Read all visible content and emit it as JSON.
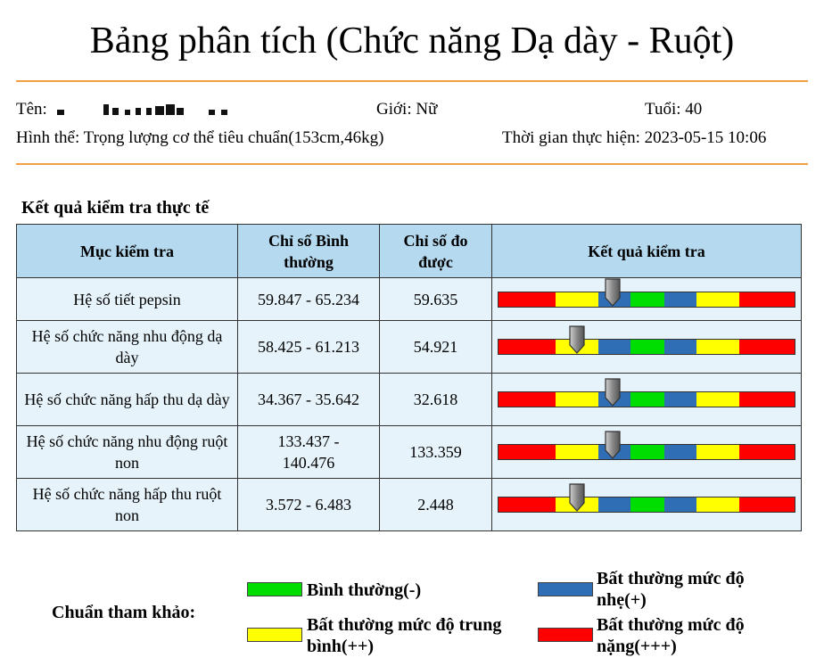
{
  "title": "Bảng phân tích (Chức năng Dạ dày - Ruột)",
  "patient": {
    "name_label": "Tên:",
    "gender": "Giới: Nữ",
    "age": "Tuổi: 40",
    "body": "Hình thể: Trọng lượng cơ thể tiêu chuẩn(153cm,46kg)",
    "time": "Thời gian thực hiện: 2023-05-15 10:06"
  },
  "section_title": "Kết quả kiểm tra thực tế",
  "table": {
    "headers": [
      "Mục kiểm tra",
      "Chỉ số Bình thường",
      "Chỉ số đo được",
      "Kết quả kiểm tra"
    ],
    "rows": [
      {
        "item": "Hệ số tiết pepsin",
        "normal": "59.847 - 65.234",
        "measured": "59.635",
        "pointer_level": 0.385
      },
      {
        "item": "Hệ số chức năng nhu động dạ dày",
        "normal": "58.425 - 61.213",
        "measured": "54.921",
        "pointer_level": 0.265
      },
      {
        "item": "Hệ số chức năng hấp thu dạ dày",
        "normal": "34.367 - 35.642",
        "measured": "32.618",
        "pointer_level": 0.385
      },
      {
        "item": "Hệ số chức năng nhu động ruột non",
        "normal": "133.437 - 140.476",
        "measured": "133.359",
        "pointer_level": 0.385
      },
      {
        "item": "Hệ số chức năng hấp thu ruột non",
        "normal": "3.572 - 6.483",
        "measured": "2.448",
        "pointer_level": 0.265
      }
    ]
  },
  "gauge_colors": [
    "#ff0000",
    "#ffff00",
    "#2f6db5",
    "#00dd00",
    "#2f6db5",
    "#ffff00",
    "#ff0000"
  ],
  "legend": {
    "label": "Chuẩn tham khảo:",
    "normal": {
      "text": "Bình thường(-)",
      "color": "#00dd00"
    },
    "mild": {
      "text": "Bất thường mức độ nhẹ(+)",
      "color": "#2f6db5"
    },
    "medium": {
      "text": "Bất thường mức độ trung bình(++)",
      "color": "#ffff00"
    },
    "severe": {
      "text": "Bất thường mức độ nặng(+++)",
      "color": "#ff0000"
    }
  }
}
